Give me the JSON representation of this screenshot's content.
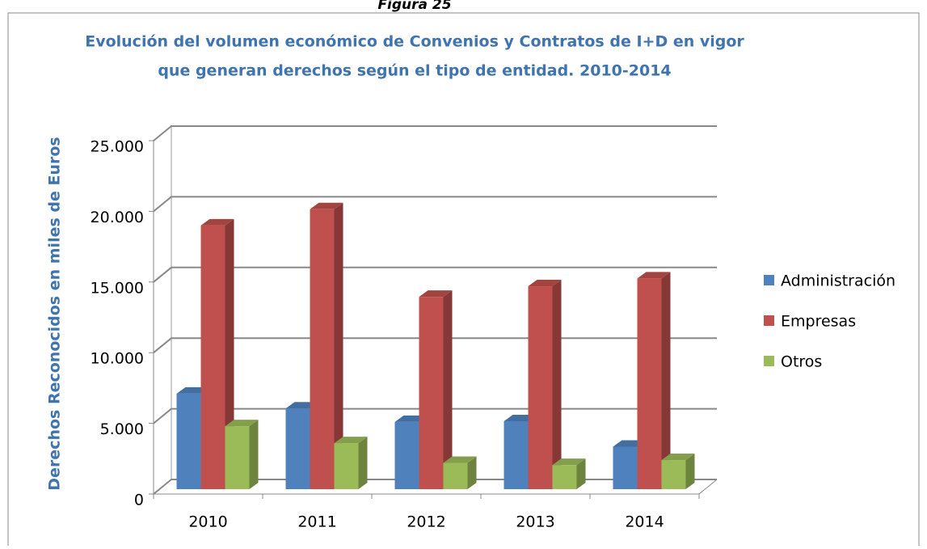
{
  "header": "Figura 25",
  "chart_data": {
    "type": "bar3d",
    "title": [
      "Evolución del volumen económico de Convenios y Contratos de I+D en vigor",
      "que generan derechos según el tipo de entidad. 2010-2014"
    ],
    "y_label": "Derechos Reconocidos en miles de Euros",
    "categories": [
      "2010",
      "2011",
      "2012",
      "2013",
      "2014"
    ],
    "series": [
      {
        "name": "Administración",
        "color": "#4f81bd",
        "values": [
          7100,
          6050,
          5100,
          5150,
          3350
        ]
      },
      {
        "name": "Empresas",
        "color": "#c0504d",
        "values": [
          19000,
          20150,
          13950,
          14700,
          15250
        ]
      },
      {
        "name": "Otros",
        "color": "#9bbb59",
        "values": [
          4800,
          3600,
          2200,
          2050,
          2400
        ]
      }
    ],
    "ylim": [
      0,
      25000
    ],
    "yticks": [
      0,
      {
        "value": 5000,
        "label": "5.000"
      },
      {
        "value": 10000,
        "label": "10.000"
      },
      {
        "value": 15000,
        "label": "15.000"
      },
      {
        "value": 20000,
        "label": "20.000"
      },
      {
        "value": 25000,
        "label": "25.000"
      }
    ],
    "grid": true,
    "legend": "right"
  }
}
